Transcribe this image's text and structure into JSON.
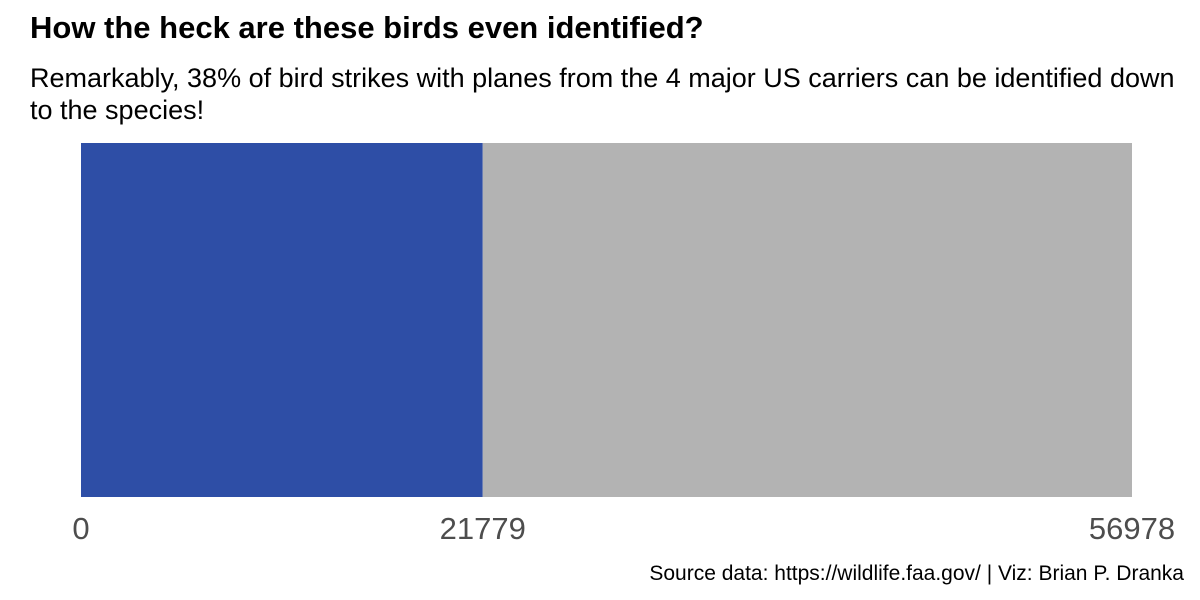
{
  "title": "How the heck are these birds even identified?",
  "subtitle": "Remarkably, 38% of bird strikes with planes from the 4 major US carriers can be identified down to the species!",
  "caption": "Source data: https://wildlife.faa.gov/ | Viz: Brian P. Dranka",
  "chart_data": {
    "type": "bar",
    "orientation": "horizontal",
    "stacked": true,
    "title": "How the heck are these birds even identified?",
    "subtitle": "Remarkably, 38% of bird strikes with planes from the 4 major US carriers can be identified down to the species!",
    "xlabel": "",
    "ylabel": "",
    "xlim": [
      0,
      56978
    ],
    "xticks": [
      0,
      21779,
      56978
    ],
    "xtick_labels": [
      "0",
      "21779",
      "56978"
    ],
    "segments": [
      {
        "start": 0,
        "end": 21779,
        "value": 21779,
        "color": "#2e4ea6"
      },
      {
        "start": 21779,
        "end": 56978,
        "value": 35199,
        "color": "#b3b3b3"
      }
    ],
    "grid": false,
    "legend": "none"
  }
}
